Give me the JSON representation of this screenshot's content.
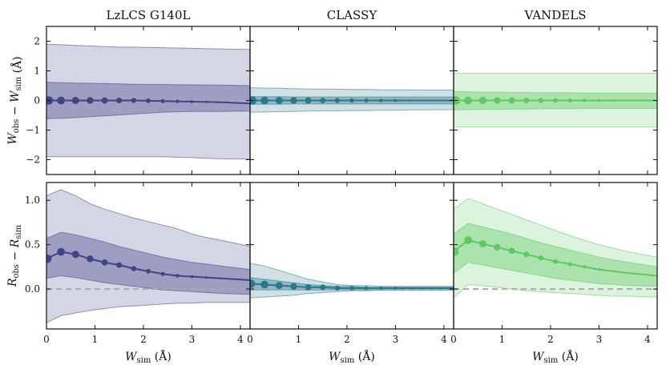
{
  "colors": {
    "lzlcs": "#414487",
    "classy": "#2a788e",
    "vandels": "#5ec962",
    "zero_line": "#aaaaaa",
    "axis": "#111111"
  },
  "chart_data": {
    "type": "line",
    "columns": [
      "LzLCS G140L",
      "CLASSY",
      "VANDELS"
    ],
    "x_ticks": [
      "0",
      "1",
      "2",
      "3",
      "4"
    ],
    "xlabel": "W",
    "xlabel_sub": "sim",
    "xlabel_unit": " (Å)",
    "xlim": [
      0,
      4.2
    ],
    "rows": [
      {
        "name": "W_obs - W_sim",
        "ylabel_a": "W",
        "ylabel_a_sub": "obs",
        "ylabel_mid": " − W",
        "ylabel_b_sub": "sim",
        "ylabel_unit": " (Å)",
        "ylim": [
          -2.5,
          2.5
        ],
        "y_ticks": [
          -2,
          -1,
          0,
          1,
          2
        ],
        "y_tick_labels": [
          "−2",
          "−1",
          "0",
          "1",
          "2"
        ],
        "show_reference_zero": true
      },
      {
        "name": "R_obs - R_sim",
        "ylabel_a": "R",
        "ylabel_a_sub": "obs",
        "ylabel_mid": " − R",
        "ylabel_b_sub": "sim",
        "ylabel_unit": "",
        "ylim": [
          -0.45,
          1.2
        ],
        "y_ticks": [
          0.0,
          0.5,
          1.0
        ],
        "y_tick_labels": [
          "0.0",
          "0.5",
          "1.0"
        ],
        "show_reference_zero": true
      }
    ],
    "panels": [
      {
        "survey": "LzLCS G140L",
        "row": 0,
        "col": 0,
        "color_key": "lzlcs",
        "x": [
          0,
          0.3,
          0.6,
          0.9,
          1.2,
          1.5,
          1.8,
          2.1,
          2.4,
          2.7,
          3.0,
          3.3,
          3.6,
          4.2
        ],
        "median": [
          0.0,
          0.0,
          0.0,
          0.0,
          0.0,
          0.0,
          0.0,
          -0.01,
          -0.02,
          -0.03,
          -0.04,
          -0.05,
          -0.06,
          -0.1
        ],
        "inner_low": [
          -0.62,
          -0.6,
          -0.58,
          -0.55,
          -0.52,
          -0.49,
          -0.46,
          -0.43,
          -0.4,
          -0.38,
          -0.37,
          -0.37,
          -0.37,
          -0.36
        ],
        "inner_high": [
          0.62,
          0.6,
          0.59,
          0.58,
          0.57,
          0.56,
          0.55,
          0.54,
          0.54,
          0.53,
          0.53,
          0.52,
          0.52,
          0.5
        ],
        "outer_low": [
          -1.9,
          -1.9,
          -1.9,
          -1.9,
          -1.9,
          -1.9,
          -1.9,
          -1.9,
          -1.9,
          -1.92,
          -1.93,
          -1.95,
          -1.97,
          -1.98
        ],
        "outer_high": [
          1.9,
          1.88,
          1.86,
          1.84,
          1.82,
          1.8,
          1.8,
          1.79,
          1.78,
          1.77,
          1.76,
          1.75,
          1.74,
          1.72
        ],
        "points_x": [
          0.05,
          0.3,
          0.6,
          0.9,
          1.2,
          1.5,
          1.8,
          2.1,
          2.4,
          2.7,
          3.0,
          3.3,
          3.6
        ],
        "points_y": [
          0.0,
          0.0,
          0.0,
          0.0,
          0.0,
          0.0,
          0.0,
          -0.01,
          -0.02,
          -0.03,
          -0.04,
          -0.05,
          -0.06
        ]
      },
      {
        "survey": "CLASSY",
        "row": 0,
        "col": 1,
        "color_key": "classy",
        "x": [
          0,
          0.3,
          0.6,
          0.9,
          1.2,
          1.5,
          1.8,
          2.1,
          2.4,
          2.7,
          3.0,
          3.3,
          3.6,
          4.2
        ],
        "median": [
          0,
          0,
          0,
          0,
          0,
          0,
          0,
          0,
          0,
          0,
          0,
          0,
          0,
          0
        ],
        "inner_low": [
          -0.13,
          -0.13,
          -0.13,
          -0.12,
          -0.12,
          -0.12,
          -0.12,
          -0.12,
          -0.12,
          -0.12,
          -0.12,
          -0.12,
          -0.12,
          -0.12
        ],
        "inner_high": [
          0.13,
          0.13,
          0.13,
          0.12,
          0.12,
          0.12,
          0.12,
          0.12,
          0.12,
          0.12,
          0.12,
          0.12,
          0.12,
          0.12
        ],
        "outer_low": [
          -0.4,
          -0.39,
          -0.38,
          -0.37,
          -0.36,
          -0.35,
          -0.35,
          -0.34,
          -0.34,
          -0.33,
          -0.33,
          -0.32,
          -0.32,
          -0.31
        ],
        "outer_high": [
          0.43,
          0.42,
          0.41,
          0.4,
          0.39,
          0.38,
          0.38,
          0.37,
          0.37,
          0.36,
          0.36,
          0.36,
          0.35,
          0.35
        ],
        "points_x": [
          0.05,
          0.3,
          0.6,
          0.9,
          1.2,
          1.5,
          1.8,
          2.1,
          2.4,
          2.7,
          3.0,
          3.3,
          3.6
        ],
        "points_y": [
          0,
          0,
          0,
          0,
          0,
          0,
          0,
          0,
          0,
          0,
          0,
          0,
          0
        ]
      },
      {
        "survey": "VANDELS",
        "row": 0,
        "col": 2,
        "color_key": "vandels",
        "x": [
          0,
          0.3,
          0.6,
          0.9,
          1.2,
          1.5,
          1.8,
          2.1,
          2.4,
          2.7,
          3.0,
          3.3,
          3.6,
          4.2
        ],
        "median": [
          0,
          0,
          0,
          0,
          0,
          0,
          0,
          0,
          0,
          0,
          0,
          0,
          0,
          0
        ],
        "inner_low": [
          -0.32,
          -0.31,
          -0.3,
          -0.3,
          -0.29,
          -0.29,
          -0.28,
          -0.28,
          -0.28,
          -0.27,
          -0.27,
          -0.27,
          -0.27,
          -0.27
        ],
        "inner_high": [
          0.3,
          0.29,
          0.28,
          0.28,
          0.27,
          0.27,
          0.26,
          0.26,
          0.26,
          0.25,
          0.25,
          0.25,
          0.25,
          0.25
        ],
        "outer_low": [
          -0.9,
          -0.9,
          -0.9,
          -0.9,
          -0.9,
          -0.9,
          -0.9,
          -0.9,
          -0.9,
          -0.9,
          -0.9,
          -0.9,
          -0.9,
          -0.9
        ],
        "outer_high": [
          0.92,
          0.92,
          0.92,
          0.92,
          0.92,
          0.92,
          0.92,
          0.92,
          0.92,
          0.92,
          0.92,
          0.92,
          0.92,
          0.92
        ],
        "points_x": [
          0.05,
          0.3,
          0.6,
          0.9,
          1.2,
          1.5,
          1.8,
          2.1,
          2.4,
          2.7,
          3.0,
          3.3,
          3.6
        ],
        "points_y": [
          0,
          0,
          0,
          0,
          0,
          0,
          0,
          0,
          0,
          0,
          0,
          0,
          0
        ]
      },
      {
        "survey": "LzLCS G140L",
        "row": 1,
        "col": 0,
        "color_key": "lzlcs",
        "x": [
          0,
          0.3,
          0.6,
          0.9,
          1.2,
          1.5,
          1.8,
          2.1,
          2.4,
          2.7,
          3.0,
          3.3,
          3.6,
          4.2
        ],
        "median": [
          0.34,
          0.42,
          0.39,
          0.34,
          0.3,
          0.27,
          0.23,
          0.2,
          0.17,
          0.15,
          0.14,
          0.13,
          0.12,
          0.1
        ],
        "inner_low": [
          0.12,
          0.15,
          0.13,
          0.1,
          0.07,
          0.05,
          0.03,
          0.01,
          -0.01,
          -0.02,
          -0.03,
          -0.04,
          -0.05,
          -0.06
        ],
        "inner_high": [
          0.57,
          0.64,
          0.61,
          0.57,
          0.53,
          0.48,
          0.44,
          0.4,
          0.36,
          0.33,
          0.3,
          0.28,
          0.26,
          0.22
        ],
        "outer_low": [
          -0.38,
          -0.3,
          -0.27,
          -0.24,
          -0.22,
          -0.2,
          -0.19,
          -0.18,
          -0.17,
          -0.16,
          -0.16,
          -0.15,
          -0.15,
          -0.15
        ],
        "outer_high": [
          1.05,
          1.12,
          1.05,
          0.96,
          0.9,
          0.85,
          0.8,
          0.76,
          0.72,
          0.68,
          0.62,
          0.58,
          0.55,
          0.48
        ],
        "points_x": [
          0.02,
          0.3,
          0.6,
          0.9,
          1.2,
          1.5,
          1.8,
          2.1,
          2.4,
          2.7,
          3.0,
          3.3,
          3.6
        ],
        "points_y": [
          0.34,
          0.42,
          0.39,
          0.34,
          0.3,
          0.27,
          0.23,
          0.2,
          0.17,
          0.15,
          0.14,
          0.13,
          0.12
        ]
      },
      {
        "survey": "CLASSY",
        "row": 1,
        "col": 1,
        "color_key": "classy",
        "x": [
          0,
          0.3,
          0.6,
          0.9,
          1.2,
          1.5,
          1.8,
          2.1,
          2.4,
          2.7,
          3.0,
          3.3,
          3.6,
          4.2
        ],
        "median": [
          0.06,
          0.05,
          0.04,
          0.03,
          0.02,
          0.02,
          0.01,
          0.01,
          0.01,
          0.01,
          0.01,
          0.01,
          0.01,
          0.01
        ],
        "inner_low": [
          -0.01,
          -0.01,
          -0.01,
          -0.01,
          -0.01,
          -0.01,
          -0.01,
          -0.01,
          -0.01,
          -0.01,
          -0.01,
          -0.01,
          -0.01,
          -0.01
        ],
        "inner_high": [
          0.13,
          0.11,
          0.09,
          0.07,
          0.05,
          0.04,
          0.03,
          0.03,
          0.02,
          0.02,
          0.02,
          0.02,
          0.02,
          0.02
        ],
        "outer_low": [
          -0.1,
          -0.09,
          -0.08,
          -0.07,
          -0.05,
          -0.04,
          -0.03,
          -0.02,
          -0.02,
          -0.01,
          -0.01,
          -0.01,
          -0.01,
          -0.01
        ],
        "outer_high": [
          0.29,
          0.26,
          0.21,
          0.16,
          0.11,
          0.08,
          0.05,
          0.04,
          0.04,
          0.03,
          0.03,
          0.03,
          0.03,
          0.03
        ],
        "points_x": [
          0.02,
          0.3,
          0.6,
          0.9,
          1.2,
          1.5,
          1.8,
          2.1,
          2.4,
          2.7,
          3.0,
          3.3,
          3.6
        ],
        "points_y": [
          0.06,
          0.05,
          0.04,
          0.03,
          0.02,
          0.02,
          0.01,
          0.01,
          0.01,
          0.01,
          0.01,
          0.01,
          0.01
        ]
      },
      {
        "survey": "VANDELS",
        "row": 1,
        "col": 2,
        "color_key": "vandels",
        "x": [
          0,
          0.3,
          0.6,
          0.9,
          1.2,
          1.5,
          1.8,
          2.1,
          2.4,
          2.7,
          3.0,
          3.3,
          3.6,
          4.2
        ],
        "median": [
          0.42,
          0.55,
          0.51,
          0.47,
          0.43,
          0.39,
          0.35,
          0.31,
          0.28,
          0.25,
          0.22,
          0.2,
          0.18,
          0.15
        ],
        "inner_low": [
          0.18,
          0.3,
          0.27,
          0.24,
          0.21,
          0.18,
          0.15,
          0.12,
          0.1,
          0.08,
          0.06,
          0.05,
          0.04,
          0.03
        ],
        "inner_high": [
          0.62,
          0.74,
          0.7,
          0.66,
          0.62,
          0.57,
          0.52,
          0.48,
          0.44,
          0.4,
          0.36,
          0.33,
          0.3,
          0.25
        ],
        "outer_low": [
          -0.1,
          0.05,
          0.04,
          0.02,
          0.0,
          -0.02,
          -0.03,
          -0.04,
          -0.05,
          -0.06,
          -0.07,
          -0.08,
          -0.08,
          -0.09
        ],
        "outer_high": [
          0.9,
          1.02,
          0.96,
          0.9,
          0.84,
          0.78,
          0.72,
          0.66,
          0.6,
          0.55,
          0.5,
          0.46,
          0.42,
          0.36
        ],
        "points_x": [
          0.02,
          0.3,
          0.6,
          0.9,
          1.2,
          1.5,
          1.8,
          2.1,
          2.4,
          2.7,
          3.0,
          3.3,
          3.6
        ],
        "points_y": [
          0.42,
          0.55,
          0.51,
          0.47,
          0.43,
          0.39,
          0.35,
          0.31,
          0.28,
          0.25,
          0.22,
          0.2,
          0.18
        ]
      }
    ]
  }
}
